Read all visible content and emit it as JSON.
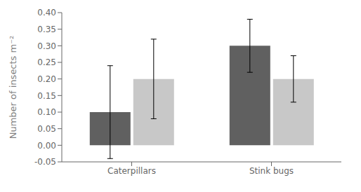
{
  "chart_data": {
    "type": "bar",
    "categories": [
      "Caterpillars",
      "Stink bugs"
    ],
    "series": [
      {
        "color": "#606060",
        "values": [
          0.1,
          0.3
        ],
        "errors": [
          0.14,
          0.08
        ]
      },
      {
        "color": "#c8c8c8",
        "values": [
          0.2,
          0.2
        ],
        "errors": [
          0.12,
          0.07
        ]
      }
    ],
    "ylabel": "Number of insects  m⁻²",
    "ylim": [
      -0.05,
      0.4
    ],
    "yticks": [
      -0.05,
      {
        "value": 0,
        "label": "0.00"
      },
      0.05,
      {
        "value": 0.1,
        "label": "0.10"
      },
      0.15,
      {
        "value": 0.2,
        "label": "0.20"
      },
      0.25,
      {
        "value": 0.3,
        "label": "0.30"
      },
      0.35,
      {
        "value": 0.4,
        "label": "0.40"
      }
    ],
    "grid": false
  }
}
